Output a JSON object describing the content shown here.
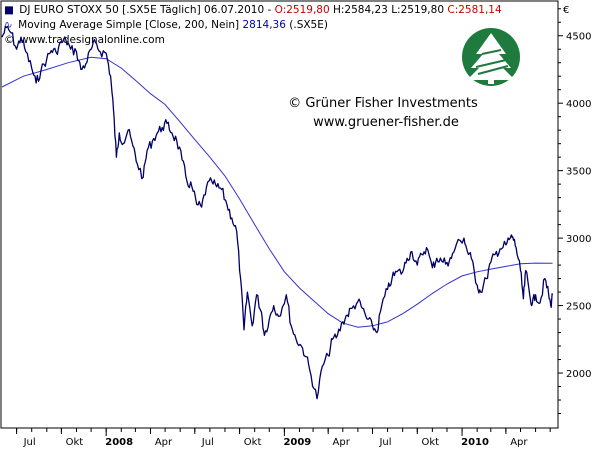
{
  "header": {
    "line1": {
      "marker": "■",
      "prefix": "DJ EURO STOXX 50 [.SX5E  Täglich] 06.07.2010 - ",
      "open": "O:2519,80",
      "sep1": " ",
      "high": "H:2584,23",
      "sep2": " ",
      "low": "L:2519,80",
      "sep3": " ",
      "close": "C:2581,14"
    },
    "line2": {
      "marker": "∿",
      "prefix": "Moving Average Simple [Close, 200, Nein] ",
      "value": "2814,36",
      "suffix": " (.SX5E)"
    },
    "line3": {
      "marker": "©",
      "text": "www.tradesignalonline.com"
    }
  },
  "watermark": {
    "copyright": "© Grüner Fisher Investments",
    "url": "www.gruener-fisher.de",
    "logo": "tree-logo-icon"
  },
  "colors": {
    "price": "#000066",
    "ma": "#3333cc",
    "red": "#cc0000",
    "blue": "#0000aa",
    "logo_bg": "#1f7a3d"
  },
  "chart_data": {
    "type": "line",
    "currency_label": "€",
    "ylim": [
      1600,
      4750
    ],
    "yticks": [
      {
        "v": 2000,
        "label": "2000"
      },
      {
        "v": 2500,
        "label": "2500"
      },
      {
        "v": 3000,
        "label": "3000"
      },
      {
        "v": 3500,
        "label": "3500"
      },
      {
        "v": 4000,
        "label": "4000"
      },
      {
        "v": 4500,
        "label": "4500"
      }
    ],
    "xlim": [
      "2007-06-01",
      "2010-07-15"
    ],
    "xticks": [
      {
        "d": "2007-07-01",
        "label": "Jul",
        "bold": false
      },
      {
        "d": "2007-10-01",
        "label": "Okt",
        "bold": false
      },
      {
        "d": "2008-01-01",
        "label": "2008",
        "bold": true
      },
      {
        "d": "2008-04-01",
        "label": "Apr",
        "bold": false
      },
      {
        "d": "2008-07-01",
        "label": "Jul",
        "bold": false
      },
      {
        "d": "2008-10-01",
        "label": "Okt",
        "bold": false
      },
      {
        "d": "2009-01-01",
        "label": "2009",
        "bold": true
      },
      {
        "d": "2009-04-01",
        "label": "Apr",
        "bold": false
      },
      {
        "d": "2009-07-01",
        "label": "Jul",
        "bold": false
      },
      {
        "d": "2009-10-01",
        "label": "Okt",
        "bold": false
      },
      {
        "d": "2010-01-01",
        "label": "2010",
        "bold": true
      },
      {
        "d": "2010-04-01",
        "label": "Apr",
        "bold": false
      }
    ],
    "series": [
      {
        "name": "DJ EURO STOXX 50",
        "kind": "price",
        "points": [
          [
            "2007-06-01",
            4490
          ],
          [
            "2007-06-10",
            4560
          ],
          [
            "2007-06-20",
            4520
          ],
          [
            "2007-07-01",
            4400
          ],
          [
            "2007-07-10",
            4490
          ],
          [
            "2007-07-20",
            4380
          ],
          [
            "2007-08-01",
            4260
          ],
          [
            "2007-08-10",
            4150
          ],
          [
            "2007-08-20",
            4240
          ],
          [
            "2007-09-01",
            4330
          ],
          [
            "2007-09-10",
            4390
          ],
          [
            "2007-09-20",
            4380
          ],
          [
            "2007-10-01",
            4450
          ],
          [
            "2007-10-10",
            4470
          ],
          [
            "2007-10-20",
            4400
          ],
          [
            "2007-11-01",
            4380
          ],
          [
            "2007-11-10",
            4250
          ],
          [
            "2007-11-20",
            4290
          ],
          [
            "2007-12-01",
            4400
          ],
          [
            "2007-12-10",
            4450
          ],
          [
            "2007-12-20",
            4380
          ],
          [
            "2008-01-01",
            4370
          ],
          [
            "2008-01-10",
            4200
          ],
          [
            "2008-01-16",
            3950
          ],
          [
            "2008-01-22",
            3600
          ],
          [
            "2008-01-28",
            3780
          ],
          [
            "2008-02-05",
            3700
          ],
          [
            "2008-02-15",
            3800
          ],
          [
            "2008-02-25",
            3680
          ],
          [
            "2008-03-05",
            3550
          ],
          [
            "2008-03-17",
            3450
          ],
          [
            "2008-03-25",
            3650
          ],
          [
            "2008-04-05",
            3720
          ],
          [
            "2008-04-15",
            3780
          ],
          [
            "2008-04-25",
            3820
          ],
          [
            "2008-05-05",
            3850
          ],
          [
            "2008-05-15",
            3780
          ],
          [
            "2008-05-25",
            3720
          ],
          [
            "2008-06-05",
            3580
          ],
          [
            "2008-06-15",
            3420
          ],
          [
            "2008-06-25",
            3380
          ],
          [
            "2008-07-05",
            3250
          ],
          [
            "2008-07-15",
            3230
          ],
          [
            "2008-07-25",
            3380
          ],
          [
            "2008-08-05",
            3420
          ],
          [
            "2008-08-15",
            3380
          ],
          [
            "2008-08-25",
            3360
          ],
          [
            "2008-09-05",
            3250
          ],
          [
            "2008-09-15",
            3150
          ],
          [
            "2008-09-25",
            3050
          ],
          [
            "2008-10-03",
            2700
          ],
          [
            "2008-10-10",
            2320
          ],
          [
            "2008-10-17",
            2600
          ],
          [
            "2008-10-27",
            2350
          ],
          [
            "2008-11-05",
            2580
          ],
          [
            "2008-11-15",
            2450
          ],
          [
            "2008-11-21",
            2280
          ],
          [
            "2008-12-01",
            2400
          ],
          [
            "2008-12-10",
            2500
          ],
          [
            "2008-12-20",
            2420
          ],
          [
            "2009-01-05",
            2580
          ],
          [
            "2009-01-15",
            2350
          ],
          [
            "2009-01-25",
            2250
          ],
          [
            "2009-02-05",
            2200
          ],
          [
            "2009-02-15",
            2120
          ],
          [
            "2009-02-25",
            1980
          ],
          [
            "2009-03-09",
            1810
          ],
          [
            "2009-03-20",
            2050
          ],
          [
            "2009-04-01",
            2130
          ],
          [
            "2009-04-10",
            2250
          ],
          [
            "2009-04-20",
            2280
          ],
          [
            "2009-05-01",
            2380
          ],
          [
            "2009-05-10",
            2430
          ],
          [
            "2009-05-20",
            2480
          ],
          [
            "2009-06-01",
            2530
          ],
          [
            "2009-06-10",
            2480
          ],
          [
            "2009-06-20",
            2400
          ],
          [
            "2009-07-01",
            2350
          ],
          [
            "2009-07-10",
            2300
          ],
          [
            "2009-07-20",
            2500
          ],
          [
            "2009-08-01",
            2620
          ],
          [
            "2009-08-10",
            2700
          ],
          [
            "2009-08-20",
            2750
          ],
          [
            "2009-09-01",
            2750
          ],
          [
            "2009-09-10",
            2850
          ],
          [
            "2009-09-20",
            2900
          ],
          [
            "2009-10-01",
            2800
          ],
          [
            "2009-10-10",
            2880
          ],
          [
            "2009-10-20",
            2930
          ],
          [
            "2009-11-01",
            2780
          ],
          [
            "2009-11-10",
            2850
          ],
          [
            "2009-11-20",
            2830
          ],
          [
            "2009-12-01",
            2820
          ],
          [
            "2009-12-10",
            2850
          ],
          [
            "2009-12-20",
            2950
          ],
          [
            "2010-01-05",
            3000
          ],
          [
            "2010-01-12",
            2900
          ],
          [
            "2010-01-20",
            2850
          ],
          [
            "2010-02-01",
            2650
          ],
          [
            "2010-02-08",
            2600
          ],
          [
            "2010-02-20",
            2700
          ],
          [
            "2010-03-01",
            2820
          ],
          [
            "2010-03-10",
            2880
          ],
          [
            "2010-03-20",
            2920
          ],
          [
            "2010-04-01",
            2950
          ],
          [
            "2010-04-10",
            3000
          ],
          [
            "2010-04-15",
            3010
          ],
          [
            "2010-04-22",
            2930
          ],
          [
            "2010-05-01",
            2760
          ],
          [
            "2010-05-07",
            2550
          ],
          [
            "2010-05-12",
            2760
          ],
          [
            "2010-05-20",
            2580
          ],
          [
            "2010-05-25",
            2510
          ],
          [
            "2010-06-01",
            2580
          ],
          [
            "2010-06-10",
            2520
          ],
          [
            "2010-06-20",
            2700
          ],
          [
            "2010-06-28",
            2580
          ],
          [
            "2010-07-02",
            2500
          ],
          [
            "2010-07-06",
            2581
          ]
        ]
      },
      {
        "name": "Moving Average Simple [Close, 200, Nein]",
        "kind": "ma",
        "points": [
          [
            "2007-06-01",
            4120
          ],
          [
            "2007-07-15",
            4200
          ],
          [
            "2007-09-01",
            4250
          ],
          [
            "2007-10-15",
            4300
          ],
          [
            "2007-12-01",
            4340
          ],
          [
            "2008-01-01",
            4330
          ],
          [
            "2008-02-01",
            4260
          ],
          [
            "2008-03-01",
            4170
          ],
          [
            "2008-04-01",
            4070
          ],
          [
            "2008-05-01",
            3990
          ],
          [
            "2008-06-01",
            3860
          ],
          [
            "2008-07-01",
            3730
          ],
          [
            "2008-08-01",
            3600
          ],
          [
            "2008-09-01",
            3460
          ],
          [
            "2008-10-01",
            3290
          ],
          [
            "2008-11-01",
            3100
          ],
          [
            "2008-12-01",
            2920
          ],
          [
            "2009-01-01",
            2750
          ],
          [
            "2009-02-01",
            2630
          ],
          [
            "2009-03-01",
            2540
          ],
          [
            "2009-04-01",
            2440
          ],
          [
            "2009-05-01",
            2370
          ],
          [
            "2009-06-01",
            2340
          ],
          [
            "2009-07-01",
            2350
          ],
          [
            "2009-08-01",
            2380
          ],
          [
            "2009-09-01",
            2440
          ],
          [
            "2009-10-01",
            2510
          ],
          [
            "2009-11-01",
            2590
          ],
          [
            "2009-12-01",
            2660
          ],
          [
            "2010-01-01",
            2720
          ],
          [
            "2010-02-01",
            2750
          ],
          [
            "2010-03-01",
            2770
          ],
          [
            "2010-04-01",
            2790
          ],
          [
            "2010-05-01",
            2810
          ],
          [
            "2010-06-01",
            2815
          ],
          [
            "2010-07-06",
            2814
          ]
        ]
      }
    ]
  }
}
